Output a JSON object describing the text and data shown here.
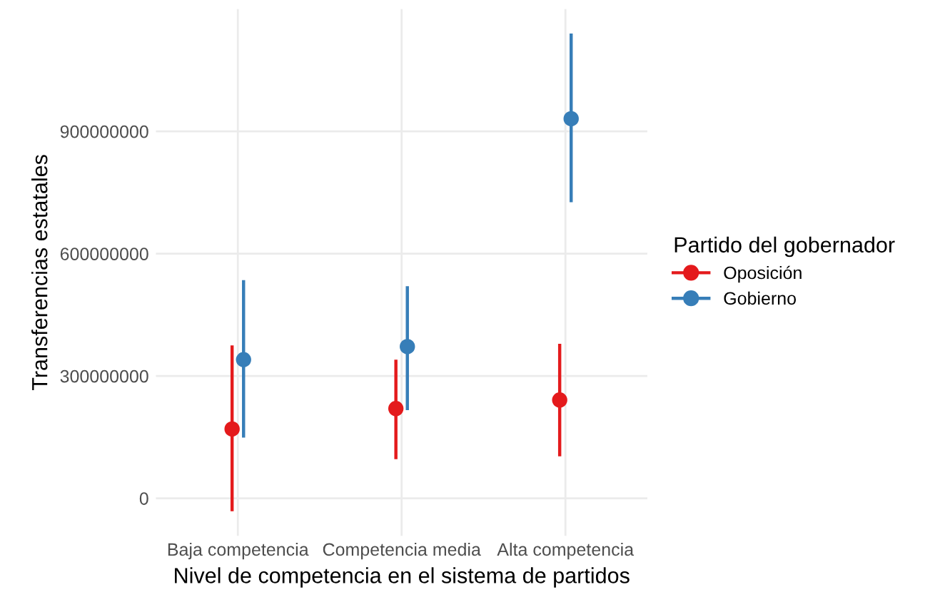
{
  "chart_data": {
    "type": "scatter",
    "xlabel": "Nivel de competencia en el sistema de partidos",
    "ylabel": "Transferencias estatales",
    "legend_title": "Partido del gobernador",
    "categories": [
      "Baja competencia",
      "Competencia media",
      "Alta competencia"
    ],
    "series": [
      {
        "name": "Oposición",
        "color": "#e41a1c",
        "values": [
          170000000,
          220000000,
          241000000
        ],
        "errors": [
          [
            -32000000,
            375000000
          ],
          [
            96000000,
            340000000
          ],
          [
            103000000,
            379000000
          ]
        ]
      },
      {
        "name": "Gobierno",
        "color": "#377eb8",
        "values": [
          340000000,
          372000000,
          931000000
        ],
        "errors": [
          [
            149000000,
            535000000
          ],
          [
            216000000,
            520000000
          ],
          [
            726000000,
            1140000000
          ]
        ]
      }
    ],
    "ylim": [
      -92000000,
      1200000000
    ],
    "yticks": [
      0,
      300000000,
      600000000,
      900000000
    ],
    "grid": true,
    "legend": "right",
    "marker": "circle"
  }
}
